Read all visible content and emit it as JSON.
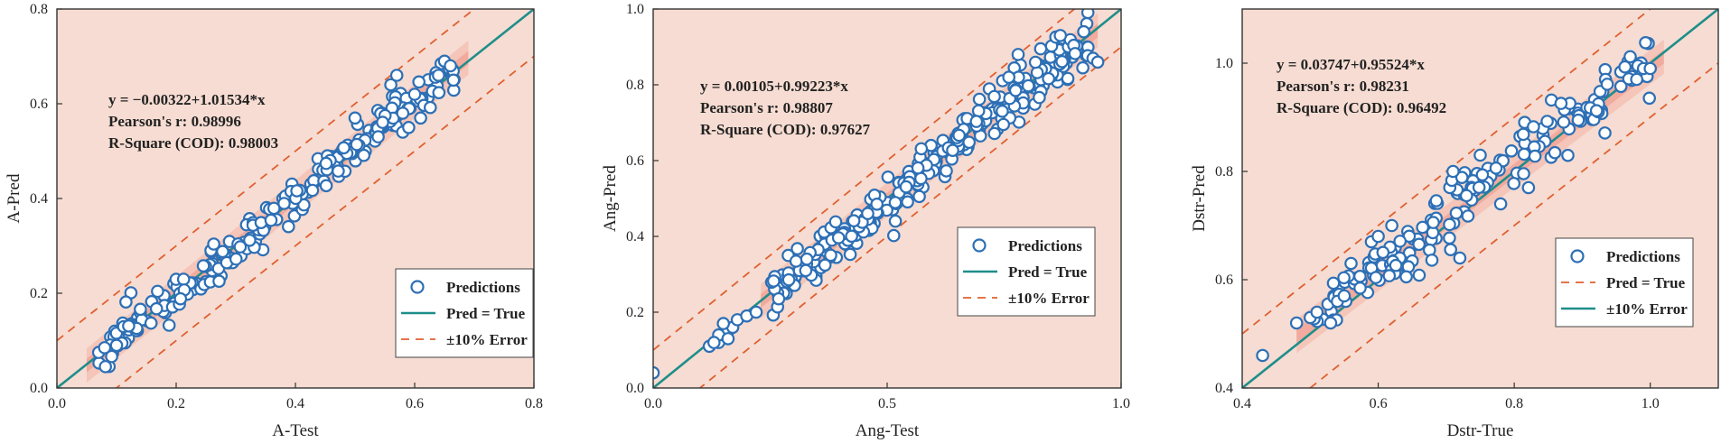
{
  "chart_data": [
    {
      "type": "scatter",
      "xlabel": "A-Test",
      "ylabel": "A-Pred",
      "xlim": [
        0.0,
        0.8
      ],
      "ylim": [
        0.0,
        0.8
      ],
      "xticks": [
        "0.0",
        "0.2",
        "0.4",
        "0.6",
        "0.8"
      ],
      "yticks": [
        "0.0",
        "0.2",
        "0.4",
        "0.6",
        "0.8"
      ],
      "annotation": [
        "y = −0.00322+1.01534*x",
        "Pearson's r: 0.98996",
        "R-Square (COD): 0.98003"
      ],
      "fit": {
        "intercept": -0.00322,
        "slope": 1.01534
      },
      "legend": [
        "Predictions",
        "Pred = True",
        "±10% Error"
      ],
      "legend_order": [
        "pred",
        "fit",
        "err"
      ],
      "legend_position": "lower-right",
      "annotation_position": "upper-left",
      "error_band": 0.1,
      "line_range": [
        0.0,
        0.8
      ],
      "points_spec": {
        "seed": 11,
        "n": 230,
        "min": 0.07,
        "max": 0.67,
        "noise": 0.022,
        "dist": "cluster",
        "bias": 0.0
      },
      "extra_points": [
        [
          0.07,
          0.075
        ],
        [
          0.08,
          0.085
        ],
        [
          0.1,
          0.09
        ],
        [
          0.56,
          0.64
        ],
        [
          0.57,
          0.66
        ],
        [
          0.58,
          0.54
        ],
        [
          0.59,
          0.55
        ],
        [
          0.6,
          0.62
        ],
        [
          0.61,
          0.57
        ],
        [
          0.64,
          0.66
        ],
        [
          0.65,
          0.69
        ],
        [
          0.66,
          0.68
        ],
        [
          0.665,
          0.65
        ],
        [
          0.5,
          0.57
        ],
        [
          0.58,
          0.58
        ]
      ]
    },
    {
      "type": "scatter",
      "xlabel": "Ang-Test",
      "ylabel": "Ang-Pred",
      "xlim": [
        0.0,
        1.0
      ],
      "ylim": [
        0.0,
        1.0
      ],
      "xticks": [
        "0.0",
        "0.5",
        "1.0"
      ],
      "yticks": [
        "0.0",
        "0.2",
        "0.4",
        "0.6",
        "0.8",
        "1.0"
      ],
      "annotation": [
        "y = 0.00105+0.99223*x",
        "Pearson's r: 0.98807",
        "R-Square (COD): 0.97627"
      ],
      "fit": {
        "intercept": 0.00105,
        "slope": 0.99223
      },
      "legend": [
        "Predictions",
        "Pred = True",
        "±10% Error"
      ],
      "legend_order": [
        "pred",
        "fit",
        "err"
      ],
      "legend_position": "center-right",
      "annotation_position": "upper-left",
      "error_band": 0.1,
      "line_range": [
        0.0,
        1.0
      ],
      "points_spec": {
        "seed": 23,
        "n": 290,
        "min": 0.25,
        "max": 0.93,
        "noise": 0.03,
        "dist": "wide",
        "bias": 0.0
      },
      "extra_points": [
        [
          0.0,
          0.04
        ],
        [
          0.12,
          0.11
        ],
        [
          0.14,
          0.12
        ],
        [
          0.15,
          0.14
        ],
        [
          0.16,
          0.15
        ],
        [
          0.17,
          0.16
        ],
        [
          0.15,
          0.17
        ],
        [
          0.18,
          0.18
        ],
        [
          0.14,
          0.14
        ],
        [
          0.16,
          0.13
        ],
        [
          0.13,
          0.12
        ],
        [
          0.2,
          0.19
        ],
        [
          0.22,
          0.2
        ],
        [
          0.94,
          0.87
        ],
        [
          0.95,
          0.86
        ],
        [
          0.92,
          0.94
        ],
        [
          0.87,
          0.93
        ],
        [
          0.78,
          0.88
        ],
        [
          0.76,
          0.82
        ]
      ]
    },
    {
      "type": "scatter",
      "xlabel": "Dstr-True",
      "ylabel": "Dstr-Pred",
      "xlim": [
        0.4,
        1.1
      ],
      "ylim": [
        0.4,
        1.1
      ],
      "xticks": [
        "0.4",
        "0.6",
        "0.8",
        "1.0"
      ],
      "yticks": [
        "0.4",
        "0.6",
        "0.8",
        "1.0"
      ],
      "annotation": [
        "y = 0.03747+0.95524*x",
        "Pearson's r: 0.98231",
        "R-Square (COD): 0.96492"
      ],
      "fit": {
        "intercept": 0.03747,
        "slope": 0.95524
      },
      "legend": [
        "Predictions",
        "Pred = True",
        "±10% Error"
      ],
      "legend_order": [
        "pred",
        "err",
        "fit"
      ],
      "legend_position": "center-right",
      "annotation_position": "upper-left",
      "error_band": 0.1,
      "line_range": [
        0.4,
        1.1
      ],
      "points_spec": {
        "seed": 37,
        "n": 180,
        "min": 0.5,
        "max": 1.0,
        "noise": 0.028,
        "dist": "wide",
        "bias": 0.01
      },
      "extra_points": [
        [
          0.43,
          0.46
        ],
        [
          0.48,
          0.52
        ],
        [
          0.5,
          0.53
        ],
        [
          0.51,
          0.54
        ],
        [
          0.53,
          0.52
        ],
        [
          0.54,
          0.56
        ],
        [
          0.55,
          0.57
        ],
        [
          0.56,
          0.63
        ],
        [
          0.59,
          0.67
        ],
        [
          0.6,
          0.68
        ],
        [
          0.62,
          0.7
        ],
        [
          0.71,
          0.8
        ],
        [
          0.72,
          0.64
        ],
        [
          0.75,
          0.83
        ],
        [
          0.78,
          0.74
        ],
        [
          0.99,
          0.99
        ],
        [
          1.0,
          0.99
        ],
        [
          0.98,
          0.97
        ]
      ]
    }
  ]
}
